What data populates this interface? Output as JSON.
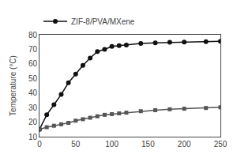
{
  "chart_data": {
    "type": "line",
    "ylabel": "Temperature (°C)",
    "x": [
      0,
      10,
      20,
      30,
      40,
      50,
      60,
      70,
      80,
      90,
      100,
      110,
      120,
      140,
      160,
      180,
      200,
      230,
      250
    ],
    "series": [
      {
        "name": "ZIF-8/PVA/MXene",
        "color": "#111111",
        "marker": "circle",
        "values": [
          15,
          25,
          32,
          39,
          47,
          53,
          59,
          64,
          68.5,
          70,
          72,
          72.5,
          73,
          74,
          74.5,
          74.8,
          75,
          75.2,
          75.5
        ]
      },
      {
        "color": "#555555",
        "marker": "square",
        "values": [
          15,
          16.5,
          17.5,
          18.5,
          19.5,
          21,
          22,
          23,
          24,
          25,
          25.5,
          26,
          26.5,
          27.5,
          28.2,
          28.8,
          29.2,
          29.7,
          30.2
        ]
      }
    ],
    "xlim": [
      0,
      250
    ],
    "xticks": [
      0,
      50,
      100,
      150,
      200,
      250
    ],
    "ylim": [
      10,
      80
    ],
    "yticks": [
      10,
      20,
      30,
      40,
      50,
      60,
      70,
      80
    ],
    "grid": false,
    "legend": "upper left"
  }
}
